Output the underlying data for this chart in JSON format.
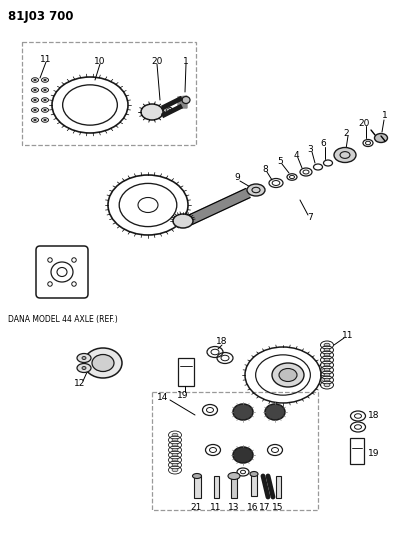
{
  "title": "81J03 700",
  "bg_color": "#ffffff",
  "line_color": "#1a1a1a",
  "dana_label": "DANA MODEL 44 AXLE (REF.)",
  "fig_width": 3.94,
  "fig_height": 5.33,
  "dpi": 100
}
